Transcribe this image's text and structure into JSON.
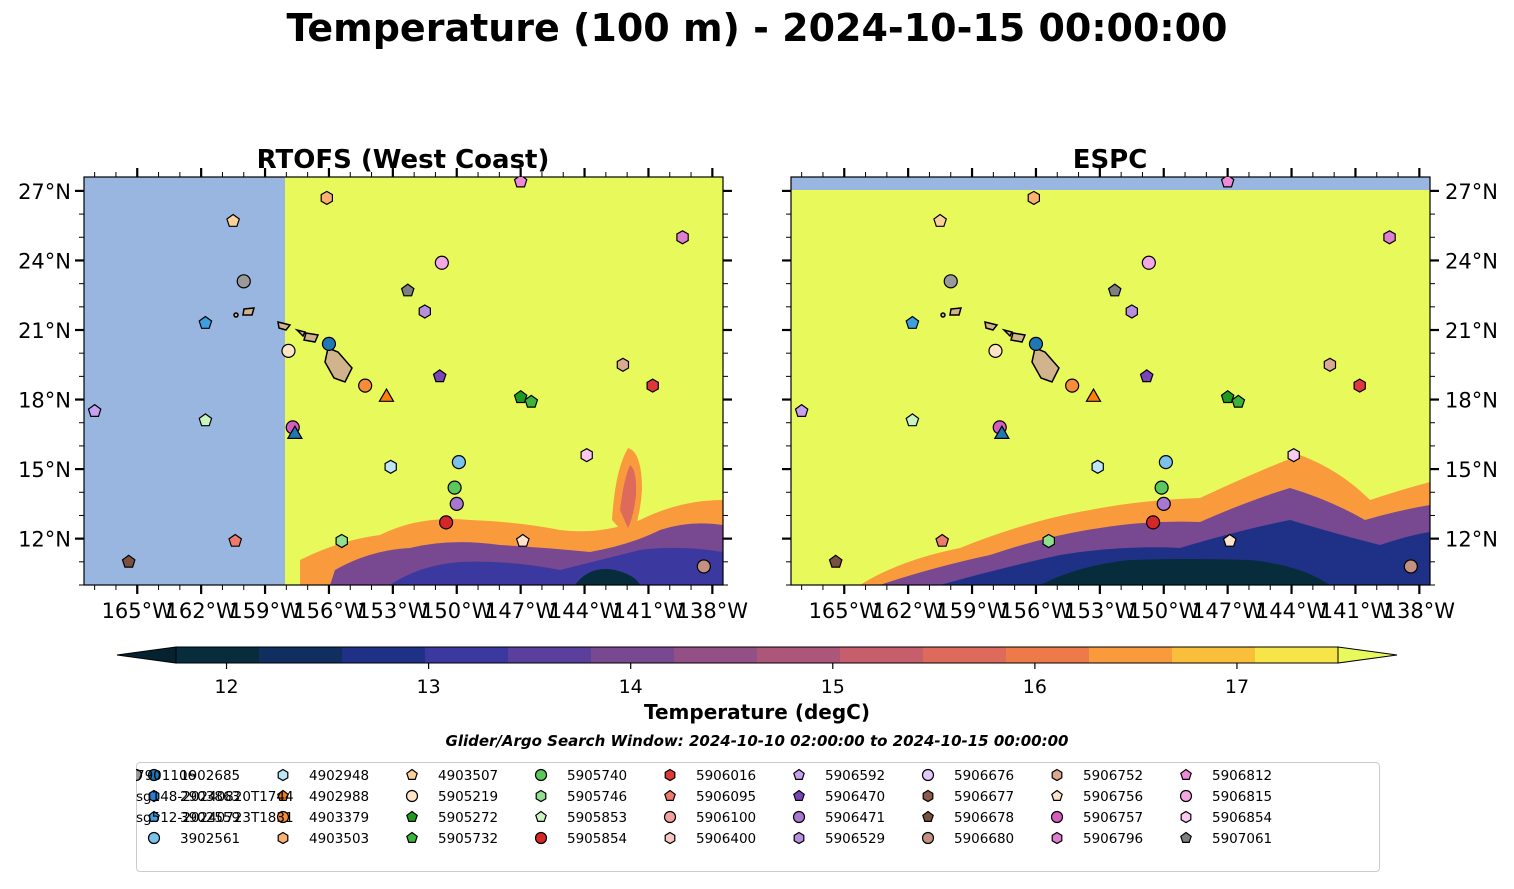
{
  "title": "Temperature (100 m) - 2024-10-15 00:00:00",
  "search_window": "Glider/Argo Search Window: 2024-10-10 02:00:00 to 2024-10-15 00:00:00",
  "colorbar": {
    "label": "Temperature (degC)",
    "min": 11.75,
    "max": 17.5,
    "ticks": [
      "12",
      "13",
      "14",
      "15",
      "16",
      "17"
    ],
    "tick_values": [
      12,
      13,
      14,
      15,
      16,
      17
    ],
    "colors": [
      "#072c3c",
      "#102f60",
      "#1f3186",
      "#3b38a0",
      "#5b3f9c",
      "#784891",
      "#935086",
      "#ac5779",
      "#c65f6b",
      "#de6a5b",
      "#ef7a49",
      "#f99a3d",
      "#f9bf3b",
      "#f7e448"
    ],
    "under_color": "#062230",
    "over_color": "#e8fa5b"
  },
  "chart_data": [
    {
      "type": "heatmap",
      "title": "RTOFS (West Coast)",
      "xlim": [
        -167.5,
        -137.5
      ],
      "ylim": [
        10,
        27.6
      ],
      "xticks": [
        "165°W",
        "162°W",
        "159°W",
        "156°W",
        "153°W",
        "150°W",
        "147°W",
        "144°W",
        "141°W",
        "138°W"
      ],
      "xtick_values": [
        -165,
        -162,
        -159,
        -156,
        -153,
        -150,
        -147,
        -144,
        -141,
        -138
      ],
      "yticks": [
        "27°N",
        "24°N",
        "21°N",
        "18°N",
        "15°N",
        "12°N"
      ],
      "ytick_values": [
        27,
        24,
        21,
        18,
        15,
        12
      ],
      "no_data_west_of": -158.2,
      "background_temperature_degC": 17.6
    },
    {
      "type": "heatmap",
      "title": "ESPC",
      "xlim": [
        -167.5,
        -137.5
      ],
      "ylim": [
        10,
        27.6
      ],
      "xticks": [
        "165°W",
        "162°W",
        "159°W",
        "156°W",
        "153°W",
        "150°W",
        "147°W",
        "144°W",
        "141°W",
        "138°W"
      ],
      "xtick_values": [
        -165,
        -162,
        -159,
        -156,
        -153,
        -150,
        -147,
        -144,
        -141,
        -138
      ],
      "yticks": [
        "27°N",
        "24°N",
        "21°N",
        "18°N",
        "15°N",
        "12°N"
      ],
      "ytick_values": [
        27,
        24,
        21,
        18,
        15,
        12
      ],
      "no_data_north_of": 27.1,
      "background_temperature_degC": 17.6
    }
  ],
  "platforms": [
    {
      "id": "1902685",
      "marker": "circle",
      "color": "#1f77b4",
      "lon": -156.0,
      "lat": 20.4
    },
    {
      "id": "2903863",
      "marker": "hexagon",
      "color": "#2a7fd0",
      "lon": null,
      "lat": null
    },
    {
      "id": "3902559",
      "marker": "pentagon",
      "color": "#3f9ee0",
      "lon": -161.8,
      "lat": 21.3
    },
    {
      "id": "3902561",
      "marker": "circle",
      "color": "#7cc0ec",
      "lon": -149.9,
      "lat": 15.3
    },
    {
      "id": "4902948",
      "marker": "hexagon",
      "color": "#bfe6f6",
      "lon": -153.1,
      "lat": 15.1
    },
    {
      "id": "4902988",
      "marker": "pentagon",
      "color": "#f07c12",
      "lon": null,
      "lat": null
    },
    {
      "id": "4903379",
      "marker": "circle",
      "color": "#f98c36",
      "lon": -154.3,
      "lat": 18.6
    },
    {
      "id": "4903503",
      "marker": "hexagon",
      "color": "#fbb26e",
      "lon": -156.1,
      "lat": 26.7
    },
    {
      "id": "4903507",
      "marker": "pentagon",
      "color": "#fcd29a",
      "lon": -160.5,
      "lat": 25.7
    },
    {
      "id": "5905219",
      "marker": "circle",
      "color": "#fde5c6",
      "lon": -157.9,
      "lat": 20.1
    },
    {
      "id": "5905272",
      "marker": "pentagon",
      "color": "#1f9a1f",
      "lon": -147.0,
      "lat": 18.1
    },
    {
      "id": "5905732",
      "marker": "pentagon",
      "color": "#3cb43c",
      "lon": -146.5,
      "lat": 17.9
    },
    {
      "id": "5905740",
      "marker": "circle",
      "color": "#5cc85c",
      "lon": -150.1,
      "lat": 14.2
    },
    {
      "id": "5905746",
      "marker": "hexagon",
      "color": "#90e090",
      "lon": -155.4,
      "lat": 11.9
    },
    {
      "id": "5905853",
      "marker": "pentagon",
      "color": "#c8f5c0",
      "lon": -161.8,
      "lat": 17.1
    },
    {
      "id": "5905854",
      "marker": "circle",
      "color": "#d62728",
      "lon": -150.5,
      "lat": 12.7
    },
    {
      "id": "5906016",
      "marker": "hexagon",
      "color": "#e0383a",
      "lon": -140.8,
      "lat": 18.6
    },
    {
      "id": "5906095",
      "marker": "pentagon",
      "color": "#ee7a6e",
      "lon": -160.4,
      "lat": 11.9
    },
    {
      "id": "5906100",
      "marker": "circle",
      "color": "#f5a0a0",
      "lon": null,
      "lat": null
    },
    {
      "id": "5906400",
      "marker": "hexagon",
      "color": "#f9c6c2",
      "lon": null,
      "lat": null
    },
    {
      "id": "5906592",
      "marker": "pentagon",
      "color": "#c8a0f0",
      "lon": -167.0,
      "lat": 17.5
    },
    {
      "id": "5906470",
      "marker": "pentagon",
      "color": "#7b44b8",
      "lon": -150.8,
      "lat": 19.0
    },
    {
      "id": "5906471",
      "marker": "circle",
      "color": "#a878d0",
      "lon": -150.0,
      "lat": 13.5
    },
    {
      "id": "5906529",
      "marker": "hexagon",
      "color": "#b88ee0",
      "lon": -151.5,
      "lat": 21.8
    },
    {
      "id": "5906676",
      "marker": "circle",
      "color": "#e4c8f8",
      "lon": null,
      "lat": null
    },
    {
      "id": "5906677",
      "marker": "hexagon",
      "color": "#8c5a4a",
      "lon": null,
      "lat": null
    },
    {
      "id": "5906678",
      "marker": "pentagon",
      "color": "#7a5040",
      "lon": -165.4,
      "lat": 11.0
    },
    {
      "id": "5906680",
      "marker": "circle",
      "color": "#c49080",
      "lon": -138.4,
      "lat": 10.8
    },
    {
      "id": "5906752",
      "marker": "hexagon",
      "color": "#dba890",
      "lon": -142.2,
      "lat": 19.5
    },
    {
      "id": "5906756",
      "marker": "pentagon",
      "color": "#fde2cc",
      "lon": -146.9,
      "lat": 11.9
    },
    {
      "id": "5906757",
      "marker": "circle",
      "color": "#d45ec0",
      "lon": -157.7,
      "lat": 16.8
    },
    {
      "id": "5906796",
      "marker": "hexagon",
      "color": "#e07ed0",
      "lon": -139.4,
      "lat": 25.0
    },
    {
      "id": "5906812",
      "marker": "pentagon",
      "color": "#ef8ad8",
      "lon": -147.0,
      "lat": 27.4
    },
    {
      "id": "5906815",
      "marker": "circle",
      "color": "#f3a8e4",
      "lon": -150.7,
      "lat": 23.9
    },
    {
      "id": "5906854",
      "marker": "hexagon",
      "color": "#fbc8ee",
      "lon": -143.9,
      "lat": 15.6
    },
    {
      "id": "5907061",
      "marker": "pentagon",
      "color": "#7f7f7f",
      "lon": -152.3,
      "lat": 22.7
    },
    {
      "id": "7901106",
      "marker": "circle",
      "color": "#9a9a9a",
      "lon": -160.0,
      "lat": 23.1
    },
    {
      "id": "sg148-20240820T1744",
      "marker": "triangle",
      "color": "#1f77b4",
      "lon": -157.6,
      "lat": 16.5,
      "line": true
    },
    {
      "id": "sg512-20240723T1831",
      "marker": "triangle",
      "color": "#ff7f0e",
      "lon": -153.3,
      "lat": 18.1,
      "line": true
    }
  ]
}
